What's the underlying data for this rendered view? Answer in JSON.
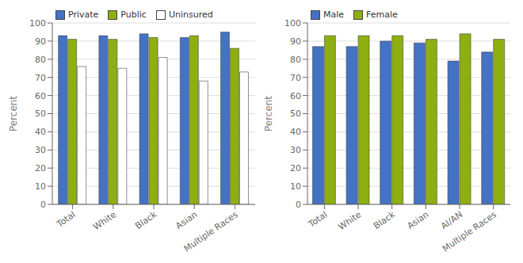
{
  "chart_data": [
    {
      "type": "bar",
      "categories": [
        "Total",
        "White",
        "Black",
        "Asian",
        "Multiple Races"
      ],
      "series": [
        {
          "name": "Private",
          "color": "#4472C4",
          "values": [
            93,
            93,
            94,
            92,
            95
          ]
        },
        {
          "name": "Public",
          "color": "#8db010",
          "values": [
            91,
            91,
            92,
            93,
            86
          ]
        },
        {
          "name": "Uninsured",
          "color": "#ffffff",
          "values": [
            76,
            75,
            81,
            68,
            73
          ]
        }
      ],
      "ylabel": "Percent",
      "ylim": [
        0,
        100
      ],
      "yticks": [
        0,
        10,
        20,
        30,
        40,
        50,
        60,
        70,
        80,
        90,
        100
      ],
      "grid": true,
      "legend": "upper left"
    },
    {
      "type": "bar",
      "categories": [
        "Total",
        "White",
        "Black",
        "Asian",
        "AI/AN",
        "Multiple Races"
      ],
      "series": [
        {
          "name": "Male",
          "color": "#4472C4",
          "values": [
            87,
            87,
            90,
            89,
            79,
            84
          ]
        },
        {
          "name": "Female",
          "color": "#8db010",
          "values": [
            93,
            93,
            93,
            91,
            94,
            91
          ]
        }
      ],
      "ylabel": "Percent",
      "ylim": [
        0,
        100
      ],
      "yticks": [
        0,
        10,
        20,
        30,
        40,
        50,
        60,
        70,
        80,
        90,
        100
      ],
      "grid": true,
      "legend": "upper left"
    }
  ]
}
